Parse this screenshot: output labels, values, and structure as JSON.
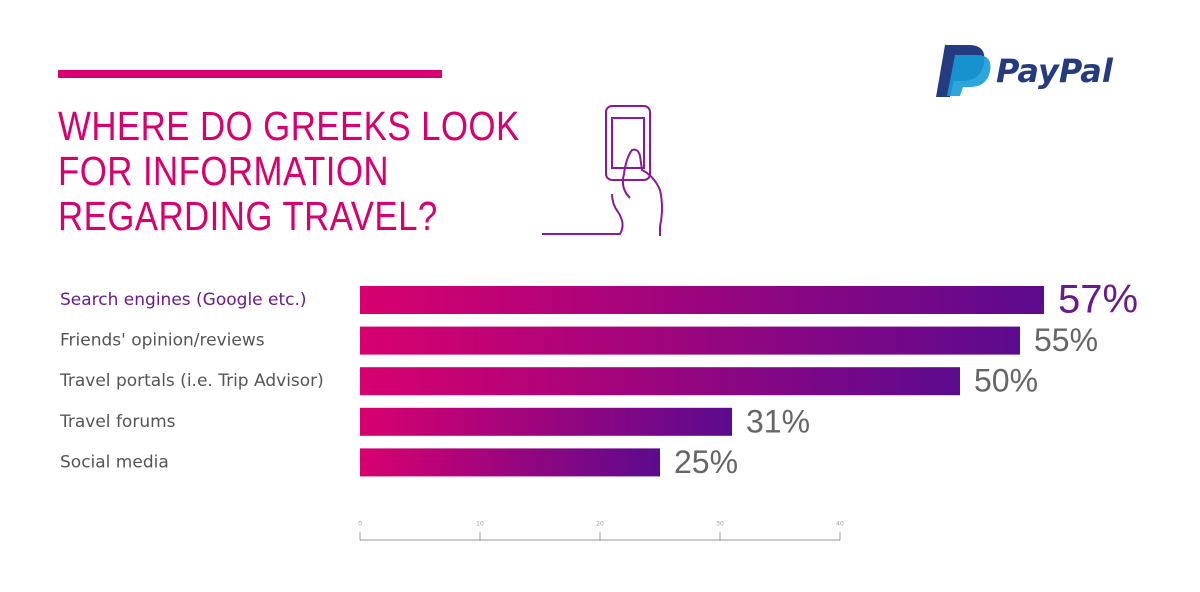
{
  "logo": "PayPal",
  "chart_data": {
    "type": "bar",
    "orientation": "horizontal",
    "title": "WHERE DO GREEKS LOOK FOR INFORMATION REGARDING TRAVEL?",
    "categories": [
      "Search engines (Google etc.)",
      "Friends' opinion/reviews",
      "Travel portals (i.e. Trip Advisor)",
      "Travel forums",
      "Social media"
    ],
    "values": [
      57,
      55,
      50,
      31,
      25
    ],
    "value_labels": [
      "57%",
      "55%",
      "50%",
      "31%",
      "25%"
    ],
    "colors": [
      "#d8006f",
      "#5c0a8e"
    ],
    "xlim": [
      0,
      40
    ],
    "xticks": [
      0,
      10,
      20,
      30,
      40
    ]
  }
}
